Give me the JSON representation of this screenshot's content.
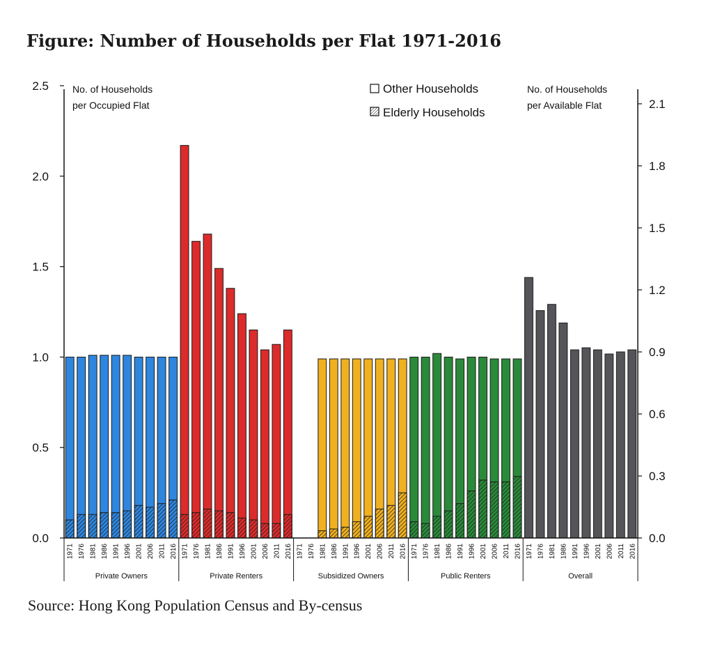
{
  "title": "Figure: Number of Households per Flat 1971-2016",
  "source": "Source: Hong Kong Population Census and By-census",
  "chart_data": {
    "type": "bar",
    "stacked": true,
    "left_axis": {
      "label_lines": [
        "No. of Households",
        "per Occupied Flat"
      ],
      "ylim": [
        0,
        2.5
      ],
      "ticks": [
        "0.0",
        "0.5",
        "1.0",
        "1.5",
        "2.0",
        "2.5"
      ]
    },
    "right_axis": {
      "label_lines": [
        "No. of Households",
        "per Available Flat"
      ],
      "ylim": [
        0,
        2.1875
      ],
      "ticks": [
        "0.0",
        "0.3",
        "0.6",
        "0.9",
        "1.2",
        "1.5",
        "1.8",
        "2.1"
      ]
    },
    "legend": {
      "placement": "top-center",
      "items": [
        {
          "label": "Other Households",
          "pattern": "solid"
        },
        {
          "label": "Elderly Households",
          "pattern": "hatched"
        }
      ]
    },
    "years": [
      "1971",
      "1976",
      "1981",
      "1986",
      "1991",
      "1996",
      "2001",
      "2006",
      "2011",
      "2016"
    ],
    "groups": [
      {
        "name": "Private Owners",
        "axis": "left",
        "color": "#2e86de",
        "total": [
          1.0,
          1.0,
          1.01,
          1.01,
          1.01,
          1.01,
          1.0,
          1.0,
          1.0,
          1.0
        ],
        "elderly": [
          0.1,
          0.13,
          0.13,
          0.14,
          0.14,
          0.15,
          0.18,
          0.17,
          0.19,
          0.21
        ]
      },
      {
        "name": "Private Renters",
        "axis": "left",
        "color": "#dc2b2b",
        "total": [
          2.17,
          1.64,
          1.68,
          1.49,
          1.38,
          1.24,
          1.15,
          1.04,
          1.07,
          1.15
        ],
        "elderly": [
          0.13,
          0.14,
          0.16,
          0.15,
          0.14,
          0.11,
          0.1,
          0.08,
          0.08,
          0.13
        ]
      },
      {
        "name": "Subsidized Owners",
        "axis": "left",
        "color": "#f0b020",
        "total": [
          null,
          null,
          0.99,
          0.99,
          0.99,
          0.99,
          0.99,
          0.99,
          0.99,
          0.99
        ],
        "elderly": [
          null,
          null,
          0.04,
          0.05,
          0.06,
          0.09,
          0.12,
          0.16,
          0.18,
          0.25
        ]
      },
      {
        "name": "Public Renters",
        "axis": "left",
        "color": "#2a8a3a",
        "total": [
          1.0,
          1.0,
          1.02,
          1.0,
          0.99,
          1.0,
          1.0,
          0.99,
          0.99,
          0.99
        ],
        "elderly": [
          0.09,
          0.08,
          0.12,
          0.15,
          0.19,
          0.26,
          0.32,
          0.31,
          0.31,
          0.34
        ]
      },
      {
        "name": "Overall",
        "axis": "right",
        "color": "#555559",
        "total": [
          1.26,
          1.1,
          1.13,
          1.04,
          0.91,
          0.92,
          0.91,
          0.89,
          0.9,
          0.91
        ],
        "elderly": null
      }
    ]
  }
}
